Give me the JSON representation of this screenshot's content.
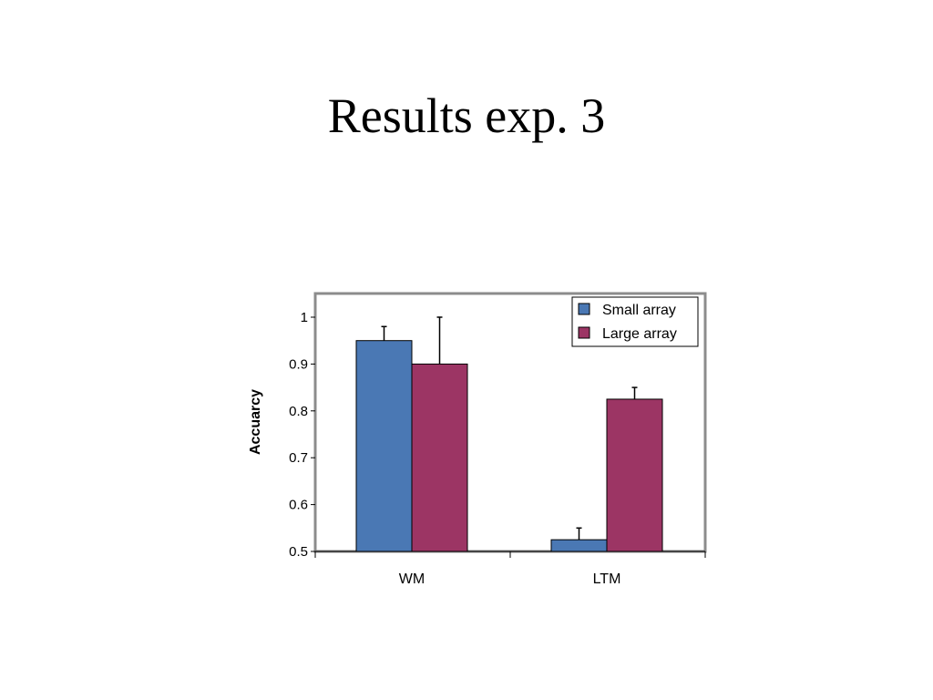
{
  "slide": {
    "title": "Results exp. 3"
  },
  "chart_data": {
    "type": "bar",
    "title": "",
    "xlabel": "",
    "ylabel": "Accuarcy",
    "ylim": [
      0.5,
      1.0
    ],
    "yticks": [
      0.5,
      0.6,
      0.7,
      0.8,
      0.9,
      1.0
    ],
    "ytick_labels": [
      "0.5",
      "0.6",
      "0.7",
      "0.8",
      "0.9",
      "1"
    ],
    "categories": [
      "WM",
      "LTM"
    ],
    "series": [
      {
        "name": "Small array",
        "color": "#4a78b4",
        "values": [
          0.95,
          0.525
        ],
        "error": [
          0.03,
          0.025
        ]
      },
      {
        "name": "Large array",
        "color": "#9c3564",
        "values": [
          0.9,
          0.825
        ],
        "error": [
          0.1,
          0.025
        ]
      }
    ],
    "legend_position": "top-right",
    "grid": false
  }
}
